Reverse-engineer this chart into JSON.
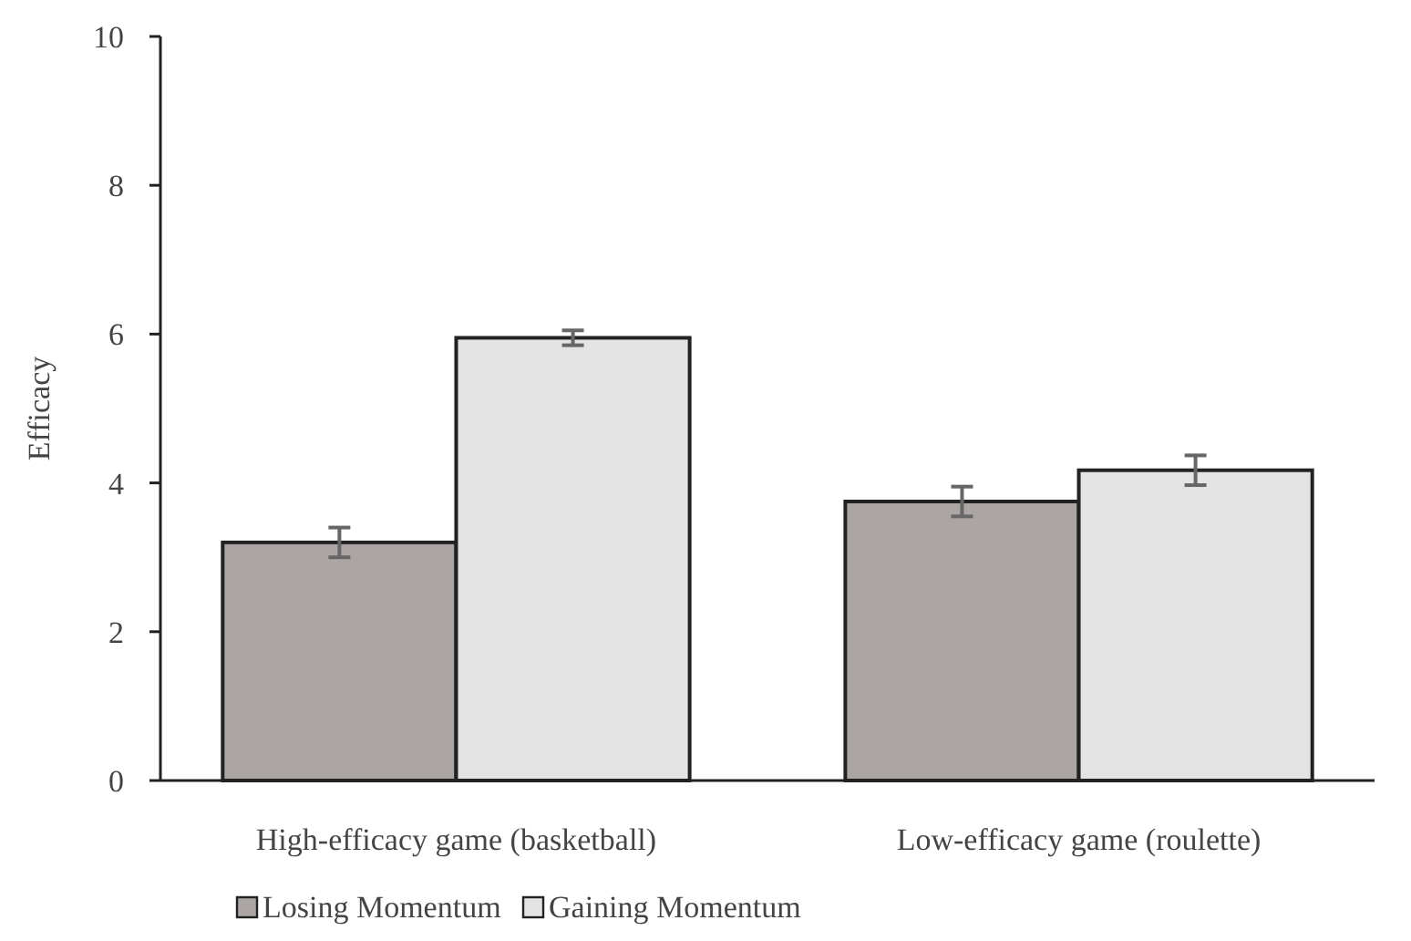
{
  "chart_data": {
    "type": "bar",
    "ylabel": "Efficacy",
    "categories": [
      "High-efficacy game (basketball)",
      "Low-efficacy game (roulette)"
    ],
    "series": [
      {
        "name": "Losing Momentum",
        "color": "#aba6a4",
        "values": [
          3.2,
          3.75
        ],
        "errors": [
          0.2,
          0.2
        ]
      },
      {
        "name": "Gaining Momentum",
        "color": "#e4e4e4",
        "values": [
          5.95,
          4.17
        ],
        "errors": [
          0.1,
          0.2
        ]
      }
    ],
    "ylim": [
      0,
      10
    ],
    "yticks": [
      0,
      2,
      4,
      6,
      8,
      10
    ],
    "legend": "bottom"
  }
}
